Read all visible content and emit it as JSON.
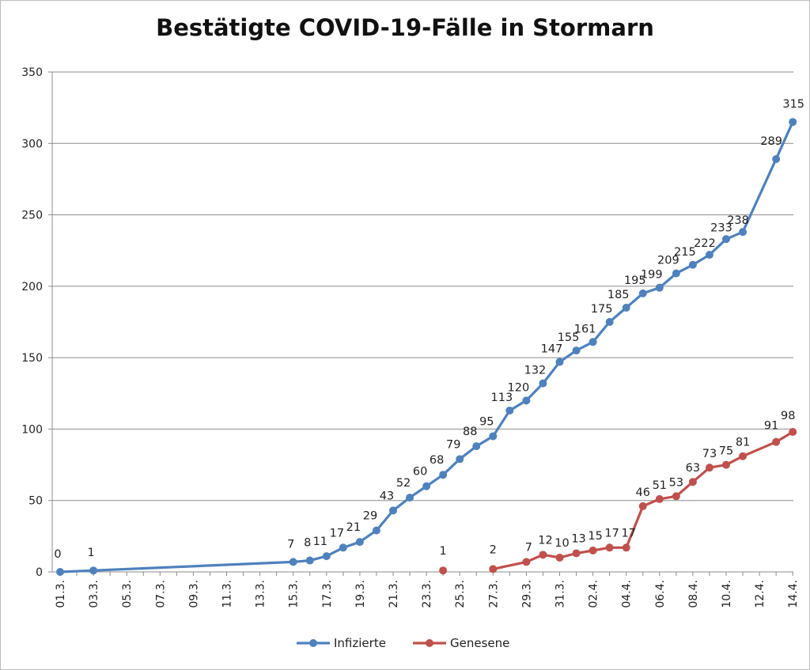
{
  "chart_data": {
    "type": "line",
    "title": "Bestätigte COVID-19-Fälle in Stormarn",
    "xlabel": "",
    "ylabel": "",
    "ylim": [
      0,
      350
    ],
    "yticks": [
      "0",
      "50",
      "100",
      "150",
      "200",
      "250",
      "300",
      "350"
    ],
    "grid": "horizontal",
    "legend_position": "bottom",
    "categories": [
      "01.3.",
      "02.3.",
      "03.3.",
      "04.3.",
      "05.3.",
      "06.3.",
      "07.3.",
      "08.3.",
      "09.3.",
      "10.3.",
      "11.3.",
      "12.3.",
      "13.3.",
      "14.3.",
      "15.3.",
      "16.3.",
      "17.3.",
      "18.3.",
      "19.3.",
      "20.3.",
      "21.3.",
      "22.3.",
      "23.3.",
      "24.3.",
      "25.3.",
      "26.3.",
      "27.3.",
      "28.3.",
      "29.3.",
      "30.3.",
      "31.3.",
      "01.4.",
      "02.4.",
      "03.4.",
      "04.4.",
      "05.4.",
      "06.4.",
      "07.4.",
      "08.4.",
      "09.4.",
      "10.4.",
      "11.4.",
      "12.4.",
      "13.4.",
      "14.4."
    ],
    "x_tick_labels": [
      "01.3.",
      "03.3.",
      "05.3.",
      "07.3.",
      "09.3.",
      "11.3.",
      "13.3.",
      "15.3.",
      "17.3.",
      "19.3.",
      "21.3.",
      "23.3.",
      "25.3.",
      "27.3.",
      "29.3.",
      "31.3.",
      "02.4.",
      "04.4.",
      "06.4.",
      "08.4.",
      "10.4.",
      "12.4.",
      "14.4."
    ],
    "series": [
      {
        "name": "Infizierte",
        "color": "#4f81bd",
        "values": [
          0,
          null,
          1,
          null,
          null,
          null,
          null,
          null,
          null,
          null,
          null,
          null,
          null,
          null,
          7,
          8,
          11,
          17,
          21,
          29,
          43,
          52,
          60,
          68,
          79,
          88,
          95,
          113,
          120,
          132,
          147,
          155,
          161,
          175,
          185,
          195,
          199,
          209,
          215,
          222,
          233,
          238,
          null,
          289,
          315
        ]
      },
      {
        "name": "Genesene",
        "color": "#c0504d",
        "values": [
          null,
          null,
          null,
          null,
          null,
          null,
          null,
          null,
          null,
          null,
          null,
          null,
          null,
          null,
          null,
          null,
          null,
          null,
          null,
          null,
          null,
          null,
          null,
          1,
          null,
          null,
          2,
          null,
          7,
          12,
          10,
          13,
          15,
          17,
          17,
          46,
          51,
          53,
          63,
          73,
          75,
          81,
          null,
          91,
          98
        ]
      }
    ]
  }
}
